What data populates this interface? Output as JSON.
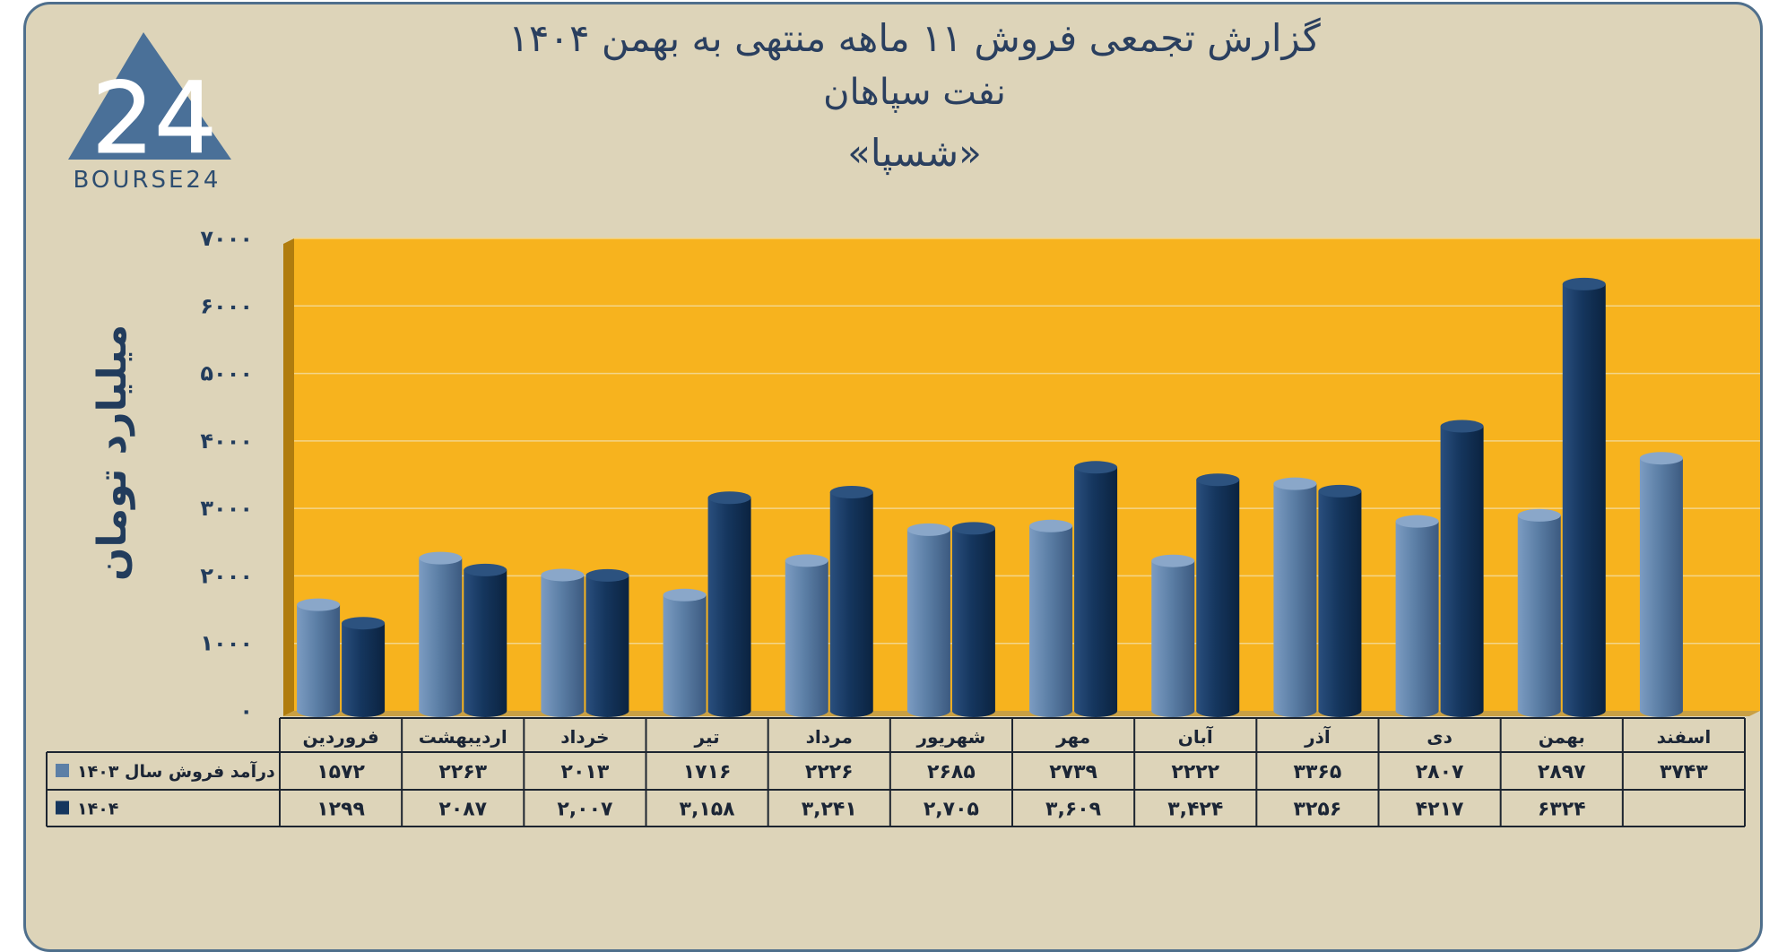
{
  "header": {
    "title_line1": "گزارش تجمعی فروش ۱۱ ماهه منتهی به بهمن ۱۴۰۴",
    "title_line2": "نفت سپاهان",
    "title_line3": "«شسپا»"
  },
  "logo": {
    "text": "BOURSE24",
    "mark": "24"
  },
  "colors": {
    "background": "#ddd4b9",
    "plot_background": "#f7b31e",
    "series_1403": "#5c7fa6",
    "series_1404": "#15365e",
    "text": "#2a3f5f"
  },
  "chart_data": {
    "type": "bar",
    "ylabel": "میلیارد تومان",
    "ylim": [
      0,
      7000
    ],
    "y_ticks": [
      "۰",
      "۱۰۰۰",
      "۲۰۰۰",
      "۳۰۰۰",
      "۴۰۰۰",
      "۵۰۰۰",
      "۶۰۰۰",
      "۷۰۰۰"
    ],
    "grid": true,
    "categories": [
      "فروردین",
      "اردیبهشت",
      "خرداد",
      "تیر",
      "مرداد",
      "شهریور",
      "مهر",
      "آبان",
      "آذر",
      "دی",
      "بهمن",
      "اسفند"
    ],
    "series": [
      {
        "name": "درآمد فروش سال ۱۴۰۳",
        "values": [
          1572,
          2263,
          2013,
          1716,
          2226,
          2685,
          2739,
          2222,
          3365,
          2807,
          2897,
          3743
        ],
        "labels": [
          "۱۵۷۲",
          "۲۲۶۳",
          "۲۰۱۳",
          "۱۷۱۶",
          "۲۲۲۶",
          "۲۶۸۵",
          "۲۷۳۹",
          "۲۲۲۲",
          "۳۳۶۵",
          "۲۸۰۷",
          "۲۸۹۷",
          "۳۷۴۳"
        ]
      },
      {
        "name": "۱۴۰۴",
        "values": [
          1299,
          2087,
          2007,
          3158,
          3241,
          2705,
          3609,
          3424,
          3256,
          4217,
          6324,
          null
        ],
        "labels": [
          "۱۲۹۹",
          "۲۰۸۷",
          "۲,۰۰۷",
          "۳,۱۵۸",
          "۳,۲۴۱",
          "۲,۷۰۵",
          "۳,۶۰۹",
          "۳,۴۲۴",
          "۳۲۵۶",
          "۴۲۱۷",
          "۶۳۲۴",
          ""
        ]
      }
    ]
  }
}
